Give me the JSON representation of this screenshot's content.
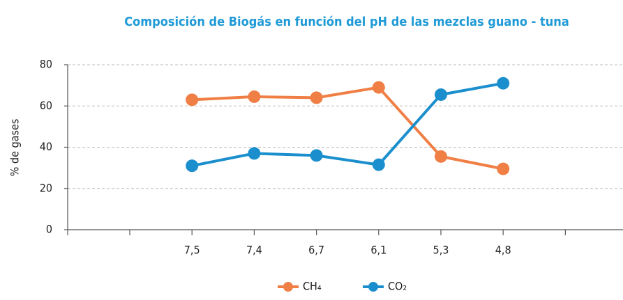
{
  "chart_data": {
    "type": "line",
    "title": "Composición de Biogás en función del pH de las mezclas guano - tuna",
    "y_label": "% de gases",
    "categories": [
      null,
      "7,5",
      "7,4",
      "6,7",
      "6,1",
      "5,3",
      "4,8",
      null
    ],
    "series": [
      {
        "name": "CH₄",
        "color": "#f07f45",
        "values": [
          null,
          63,
          64.5,
          64,
          69,
          35.5,
          29.5,
          null
        ]
      },
      {
        "name": "CO₂",
        "color": "#1b8fcd",
        "values": [
          null,
          31,
          37,
          36,
          31.5,
          65.5,
          71,
          null
        ]
      }
    ],
    "ylim": [
      0,
      80
    ],
    "yticks": [
      0,
      20,
      40,
      60,
      80
    ],
    "grid": true,
    "legend": "bottom"
  }
}
